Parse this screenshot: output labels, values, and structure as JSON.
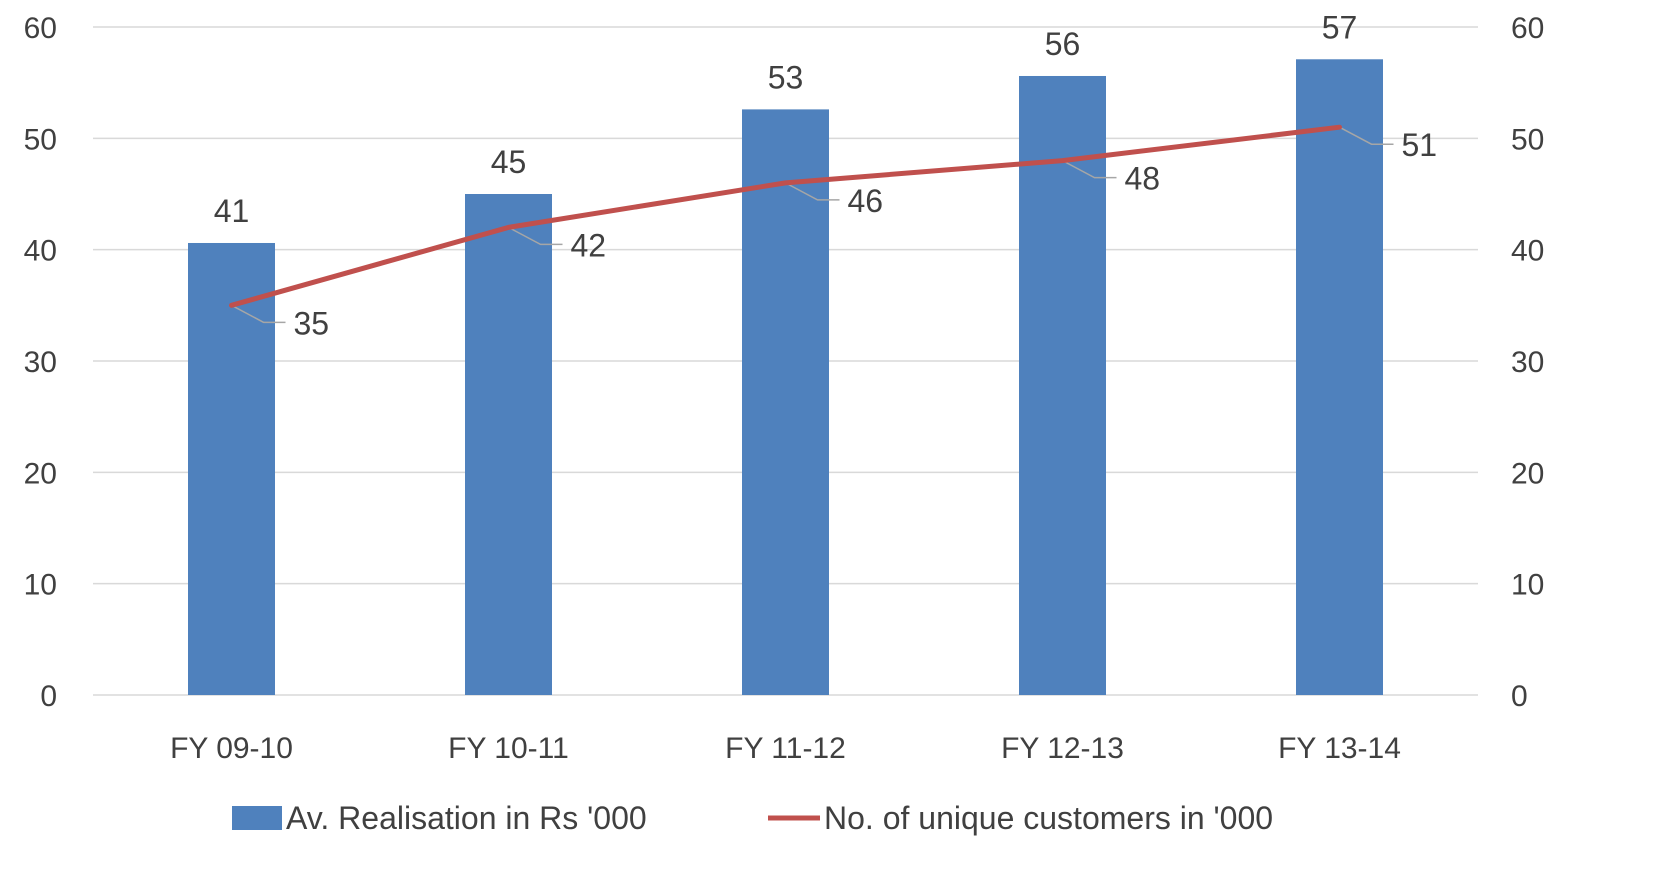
{
  "chart_data": {
    "type": "bar",
    "categories": [
      "FY 09-10",
      "FY 10-11",
      "FY 11-12",
      "FY 12-13",
      "FY 13-14"
    ],
    "series": [
      {
        "name": "Av. Realisation in Rs '000",
        "kind": "bar",
        "axis": "left",
        "color": "#4F81BD",
        "values": [
          40.6,
          45,
          52.6,
          55.6,
          57.1
        ],
        "labels": [
          "41",
          "45",
          "53",
          "56",
          "57"
        ]
      },
      {
        "name": "No. of unique customers in '000",
        "kind": "line",
        "axis": "right",
        "color": "#C0504D",
        "values": [
          35,
          42,
          46,
          48,
          51
        ],
        "labels": [
          "35",
          "42",
          "46",
          "48",
          "51"
        ]
      }
    ],
    "y_left": {
      "lim": [
        0,
        60
      ],
      "ticks": [
        "0",
        "10",
        "20",
        "30",
        "40",
        "50",
        "60"
      ]
    },
    "y_right": {
      "lim": [
        0,
        60
      ],
      "ticks": [
        "0",
        "10",
        "20",
        "30",
        "40",
        "50",
        "60"
      ]
    },
    "title": "",
    "grid": true,
    "legend_position": "bottom",
    "colors": {
      "gridline": "#D9D9D9",
      "text": "#404040",
      "leader": "#A6A6A6"
    }
  }
}
